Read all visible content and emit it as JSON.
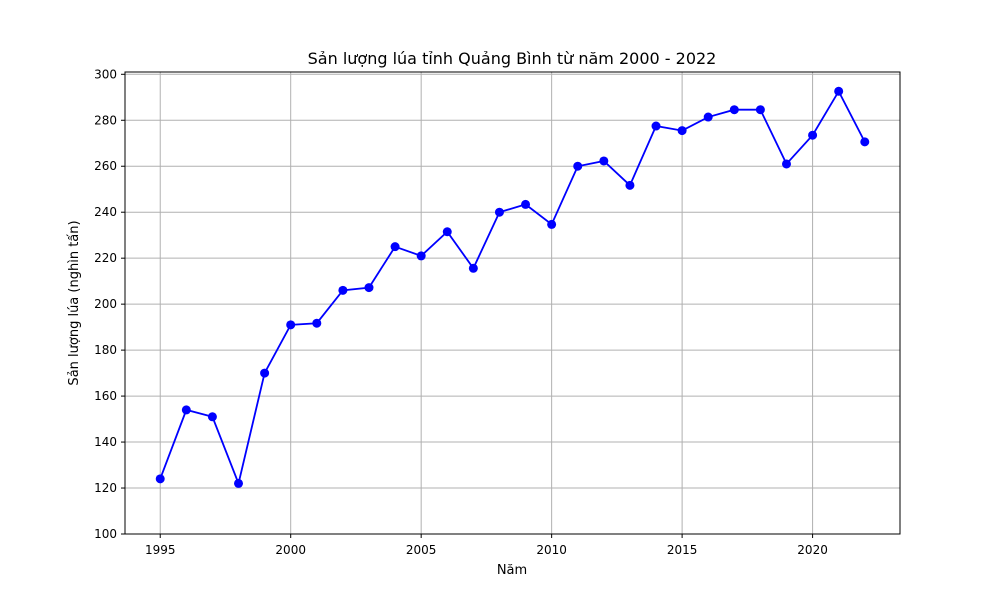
{
  "chart_data": {
    "type": "line",
    "title": "Sản lượng lúa tỉnh Quảng Bình từ năm 2000 - 2022",
    "xlabel": "Năm",
    "ylabel": "Sản lượng lúa (nghìn tấn)",
    "xlim": [
      1993.65,
      2023.35
    ],
    "ylim": [
      100,
      301
    ],
    "xticks": [
      1995,
      2000,
      2005,
      2010,
      2015,
      2020
    ],
    "yticks": [
      100,
      120,
      140,
      160,
      180,
      200,
      220,
      240,
      260,
      280,
      300
    ],
    "grid": true,
    "line_color": "#0000ff",
    "marker": "circle",
    "series": [
      {
        "name": "",
        "x": [
          1995,
          1996,
          1997,
          1998,
          1999,
          2000,
          2001,
          2002,
          2003,
          2004,
          2005,
          2006,
          2007,
          2008,
          2009,
          2010,
          2011,
          2012,
          2013,
          2014,
          2015,
          2016,
          2017,
          2018,
          2019,
          2020,
          2021,
          2022
        ],
        "y": [
          124,
          154,
          151,
          122,
          170,
          191,
          191.7,
          206,
          207.2,
          225,
          221,
          231.5,
          215.6,
          240,
          243.4,
          234.7,
          260,
          262.3,
          251.7,
          277.5,
          275.5,
          281.4,
          284.6,
          284.6,
          261,
          273.5,
          292.6,
          270.6
        ]
      }
    ]
  }
}
